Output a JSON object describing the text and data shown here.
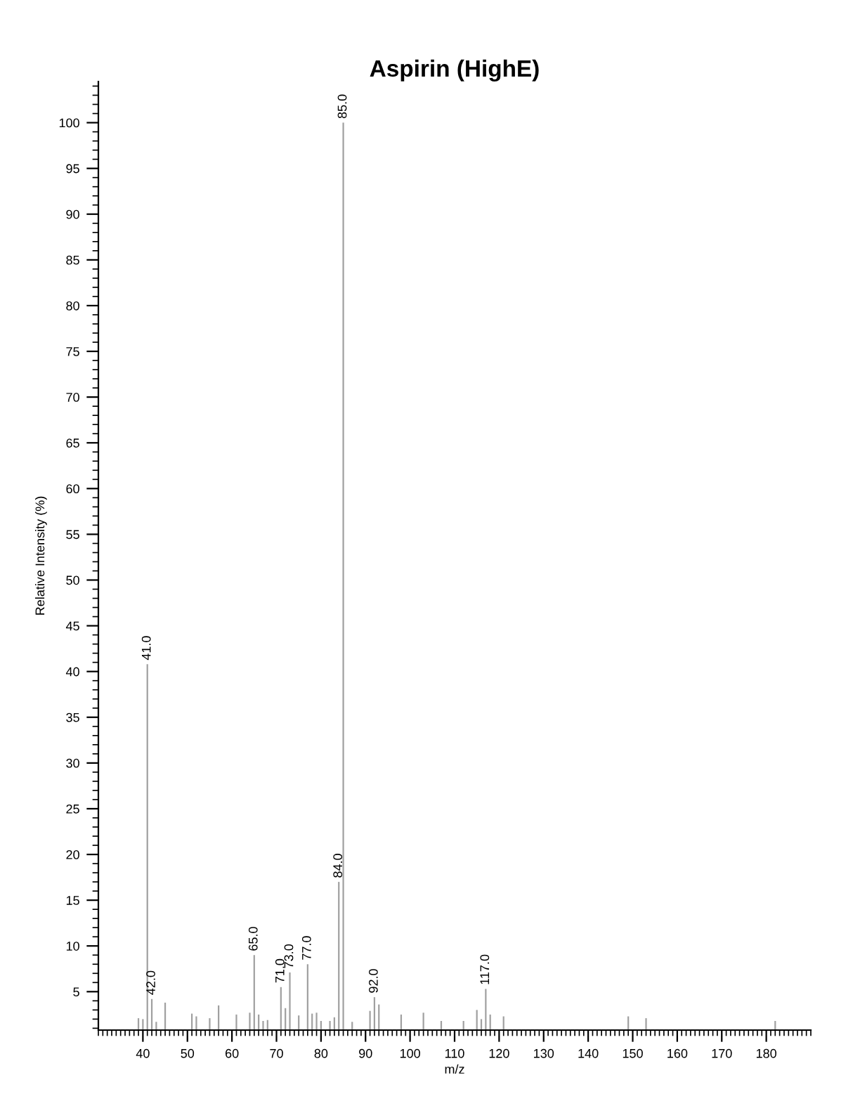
{
  "chart_data": {
    "type": "bar",
    "title": "Aspirin (HighE)",
    "xlabel": "m/z",
    "ylabel": "Relative Intensity (%)",
    "x": [
      39,
      40,
      41,
      42,
      43,
      45,
      51,
      52,
      55,
      57,
      61,
      64,
      65,
      66,
      67,
      68,
      71,
      72,
      73,
      75,
      77,
      78,
      79,
      80,
      82,
      83,
      84,
      85,
      87,
      91,
      92,
      93,
      98,
      103,
      107,
      112,
      115,
      116,
      117,
      118,
      121,
      149,
      153,
      182
    ],
    "values": [
      2.1,
      2.0,
      40.8,
      4.2,
      1.7,
      3.8,
      2.6,
      2.3,
      2.1,
      3.5,
      2.5,
      2.7,
      9.0,
      2.5,
      1.8,
      1.9,
      5.5,
      3.2,
      7.1,
      2.4,
      8.0,
      2.6,
      2.7,
      1.8,
      1.8,
      2.2,
      17.0,
      100,
      1.7,
      2.9,
      4.4,
      3.6,
      2.5,
      2.7,
      1.8,
      1.8,
      3.0,
      2.0,
      5.3,
      2.5,
      2.3,
      2.3,
      2.1,
      1.8
    ],
    "color": "#a0a0a0",
    "annotations": [
      {
        "text": "41.0",
        "x": 41,
        "y": 40.8
      },
      {
        "text": "42.0",
        "x": 42,
        "y": 4.2
      },
      {
        "text": "65.0",
        "x": 65,
        "y": 9.0
      },
      {
        "text": "71.0",
        "x": 71,
        "y": 5.5
      },
      {
        "text": "73.0",
        "x": 73,
        "y": 7.1
      },
      {
        "text": "77.0",
        "x": 77,
        "y": 8.0
      },
      {
        "text": "84.0",
        "x": 84,
        "y": 17.0
      },
      {
        "text": "85.0",
        "x": 85,
        "y": 100
      },
      {
        "text": "92.0",
        "x": 92,
        "y": 4.4
      },
      {
        "text": "117.0",
        "x": 117,
        "y": 5.3
      }
    ],
    "xlim": [
      30,
      190
    ],
    "xticks": [
      40,
      50,
      60,
      70,
      80,
      90,
      100,
      110,
      120,
      130,
      140,
      150,
      160,
      170,
      180
    ],
    "ylim": [
      0.8,
      104.5
    ],
    "yticks": [
      5,
      10,
      15,
      20,
      25,
      30,
      35,
      40,
      45,
      50,
      55,
      60,
      65,
      70,
      75,
      80,
      85,
      90,
      95,
      100
    ]
  }
}
